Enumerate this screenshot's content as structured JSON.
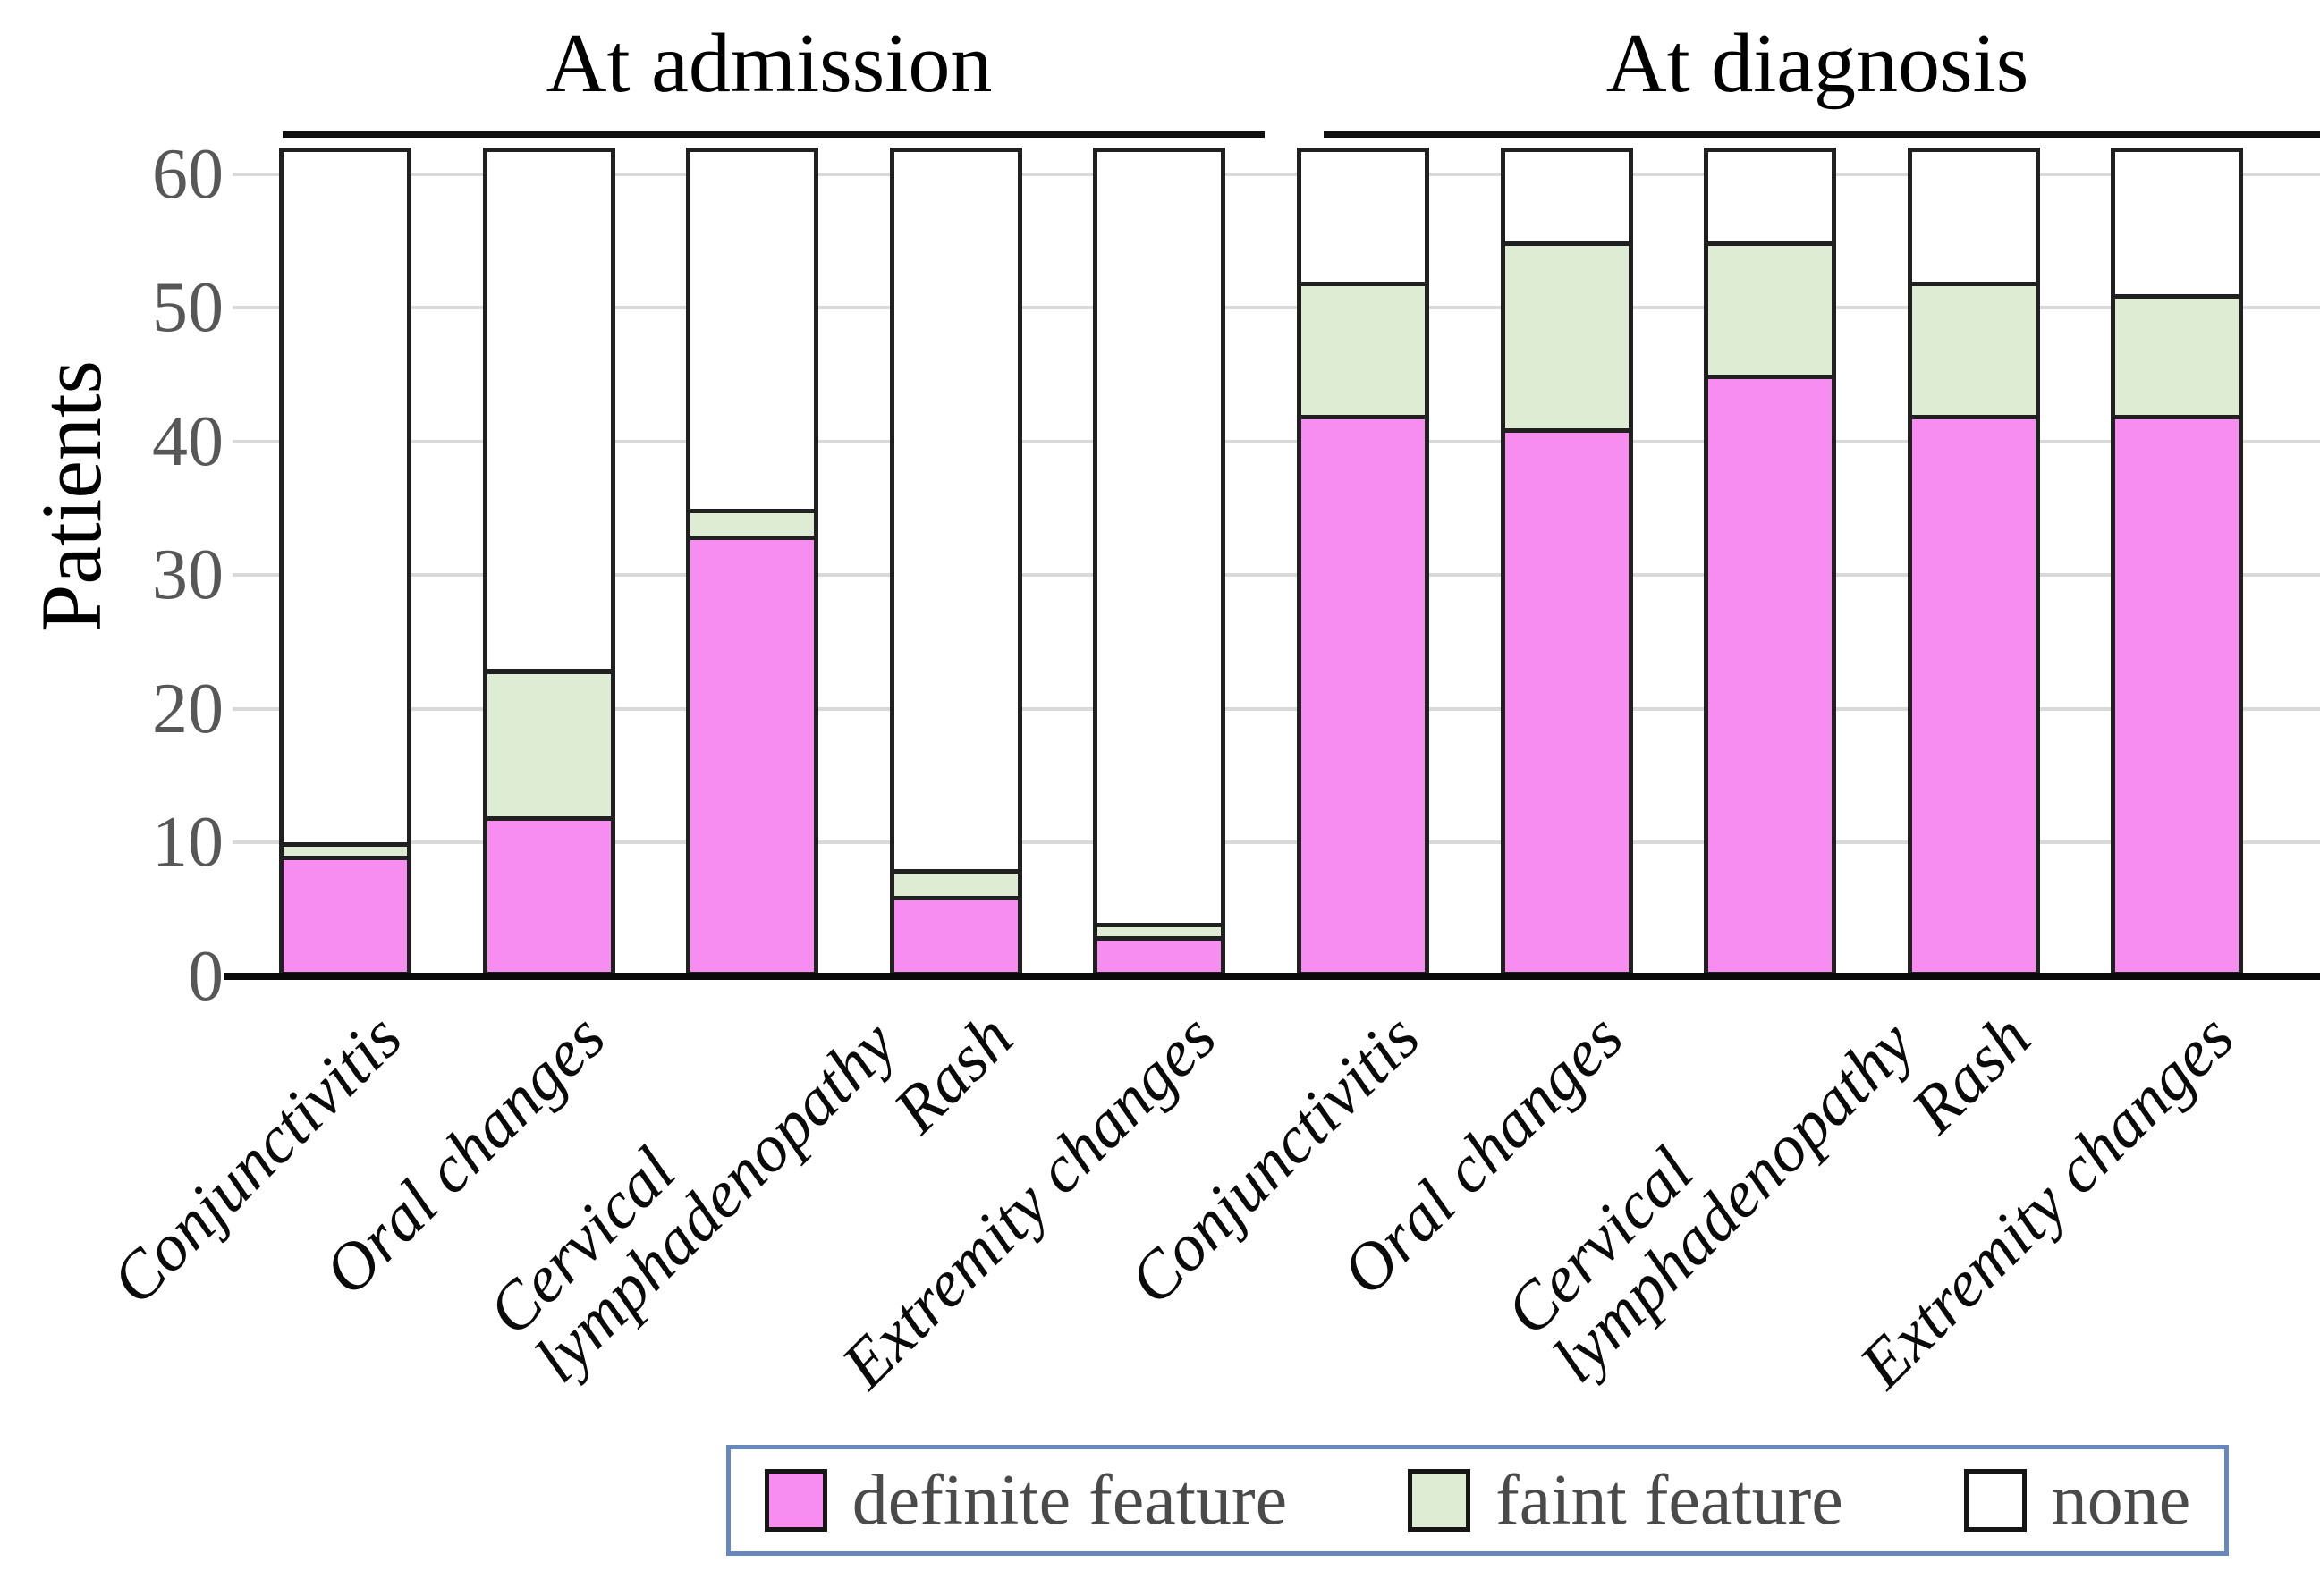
{
  "figure": {
    "y_axis_title": "Patients",
    "group_headers": [
      {
        "label": "At admission"
      },
      {
        "label": "At diagnosis"
      }
    ],
    "legend": {
      "items": [
        {
          "label": "definite feature",
          "color": "#f78df1"
        },
        {
          "label": "faint feature",
          "color": "#dfecd4"
        },
        {
          "label": "none",
          "color": "#ffffff"
        }
      ]
    }
  },
  "chart_data": {
    "type": "bar",
    "stacked": true,
    "title": "",
    "xlabel": "",
    "ylabel": "Patients",
    "ylim": [
      0,
      62
    ],
    "yticks": [
      0,
      10,
      20,
      30,
      40,
      50,
      60
    ],
    "grid": "horizontal",
    "legend_position": "bottom",
    "group_headers": [
      "At admission",
      "At diagnosis"
    ],
    "categories": [
      "Conjunctivitis",
      "Oral changes",
      "Cervical lymphadenopathy",
      "Rash",
      "Extremity changes",
      "Conjunctivitis",
      "Oral changes",
      "Cervical lymphadenopathy",
      "Rash",
      "Extremity changes"
    ],
    "category_display_lines": [
      [
        "Conjunctivitis"
      ],
      [
        "Oral changes"
      ],
      [
        "Cervical",
        "lymphadenopathy"
      ],
      [
        "Rash"
      ],
      [
        "Extremity changes"
      ],
      [
        "Conjunctivitis"
      ],
      [
        "Oral changes"
      ],
      [
        "Cervical",
        "lymphadenopathy"
      ],
      [
        "Rash"
      ],
      [
        "Extremity changes"
      ]
    ],
    "bar_total": 62,
    "series": [
      {
        "name": "definite feature",
        "color": "#f78df1",
        "values": [
          9,
          12,
          33,
          6,
          3,
          42,
          41,
          45,
          42,
          42
        ]
      },
      {
        "name": "faint feature",
        "color": "#dfecd4",
        "values": [
          1,
          11,
          2,
          2,
          1,
          10,
          14,
          10,
          10,
          9
        ]
      },
      {
        "name": "none",
        "color": "#ffffff",
        "values": [
          52,
          39,
          27,
          54,
          58,
          10,
          7,
          7,
          10,
          11
        ]
      }
    ]
  }
}
